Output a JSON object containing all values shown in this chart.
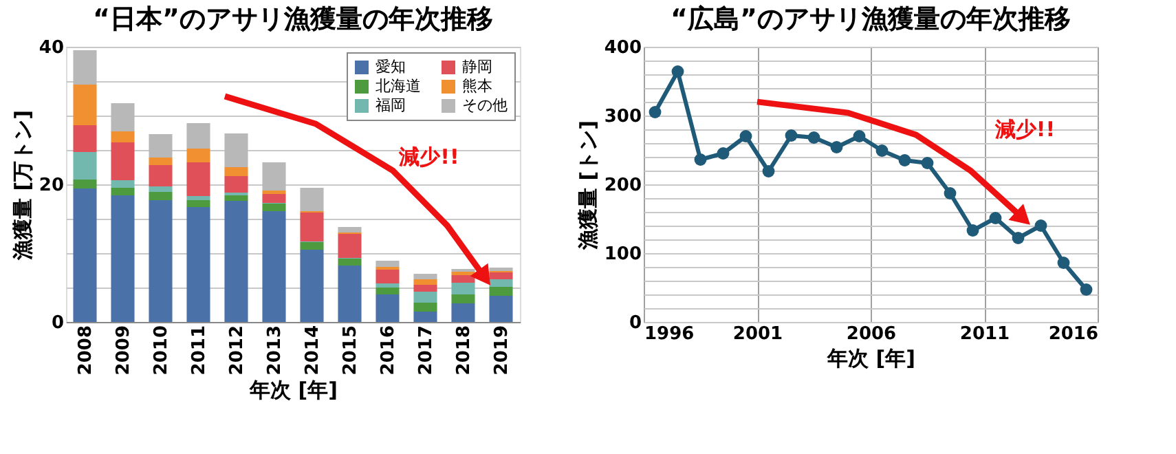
{
  "chart_data": [
    {
      "type": "bar",
      "stacked": true,
      "title": "“日本”のアサリ漁獲量の年次推移",
      "xlabel": "年次 [年]",
      "ylabel": "漁獲量 [万トン]",
      "categories": [
        "2008",
        "2009",
        "2010",
        "2011",
        "2012",
        "2013",
        "2014",
        "2015",
        "2016",
        "2017",
        "2018",
        "2019"
      ],
      "series": [
        {
          "name": "愛知",
          "color": "#4a72a8",
          "values": [
            19.4,
            18.4,
            17.7,
            16.7,
            17.6,
            16.1,
            10.5,
            8.2,
            4.0,
            1.5,
            2.7,
            3.8
          ]
        },
        {
          "name": "北海道",
          "color": "#4e9a3e",
          "values": [
            1.3,
            1.1,
            1.2,
            1.0,
            0.8,
            1.1,
            1.1,
            1.0,
            1.0,
            1.3,
            1.3,
            1.3
          ]
        },
        {
          "name": "福岡",
          "color": "#72b8ae",
          "values": [
            4.0,
            1.1,
            0.8,
            0.6,
            0.4,
            0.1,
            0.1,
            0.1,
            0.6,
            1.6,
            1.7,
            1.1
          ]
        },
        {
          "name": "静岡",
          "color": "#e05058",
          "values": [
            3.9,
            5.5,
            3.1,
            4.9,
            2.4,
            1.3,
            4.2,
            3.5,
            2.0,
            1.0,
            1.1,
            1.0
          ]
        },
        {
          "name": "熊本",
          "color": "#f09030",
          "values": [
            5.9,
            1.6,
            1.1,
            2.0,
            1.3,
            0.5,
            0.2,
            0.2,
            0.4,
            0.8,
            0.5,
            0.2
          ]
        },
        {
          "name": "その他",
          "color": "#b8b8b8",
          "values": [
            5.0,
            4.1,
            3.4,
            3.7,
            4.9,
            4.1,
            3.4,
            0.8,
            0.9,
            0.8,
            0.4,
            0.5
          ]
        }
      ],
      "ylim": [
        0,
        40
      ],
      "yticks": [
        0,
        {
          "value": 5,
          "label": null
        },
        {
          "value": 10,
          "label": null
        },
        {
          "value": 15,
          "label": null
        },
        20,
        {
          "value": 25,
          "label": null
        },
        {
          "value": 30,
          "label": null
        },
        {
          "value": 35,
          "label": null
        },
        40
      ],
      "grid": "y",
      "legend": "top right",
      "annotations": [
        "減少!!"
      ]
    },
    {
      "type": "line",
      "title": "“広島”のアサリ漁獲量の年次推移",
      "xlabel": "年次 [年]",
      "ylabel": "漁獲量 [トン]",
      "marker": "circle",
      "line_style": "solid",
      "x": [
        1996.5,
        1997.5,
        1998.5,
        1999.5,
        2000.5,
        2001.5,
        2002.5,
        2003.5,
        2004.5,
        2005.5,
        2006.5,
        2007.5,
        2008.5,
        2009.5,
        2010.5,
        2011.5,
        2012.5,
        2013.5,
        2014.5,
        2015.5
      ],
      "series": [
        {
          "color": "#1f5a78",
          "values": [
            305,
            364,
            236,
            245,
            270,
            219,
            271,
            268,
            254,
            270,
            249,
            235,
            231,
            187,
            133,
            151,
            122,
            140,
            86,
            47
          ]
        }
      ],
      "xlim": [
        1996,
        2016
      ],
      "xticks": [
        1996,
        2001,
        2006,
        2011,
        2016
      ],
      "ylim": [
        0,
        400
      ],
      "yticks": [
        0,
        {
          "value": 20,
          "label": null
        },
        {
          "value": 40,
          "label": null
        },
        {
          "value": 60,
          "label": null
        },
        {
          "value": 80,
          "label": null
        },
        100,
        {
          "value": 120,
          "label": null
        },
        {
          "value": 140,
          "label": null
        },
        {
          "value": 160,
          "label": null
        },
        {
          "value": 180,
          "label": null
        },
        200,
        {
          "value": 220,
          "label": null
        },
        {
          "value": 240,
          "label": null
        },
        {
          "value": 260,
          "label": null
        },
        {
          "value": 280,
          "label": null
        },
        300,
        {
          "value": 320,
          "label": null
        },
        {
          "value": 340,
          "label": null
        },
        {
          "value": 360,
          "label": null
        },
        {
          "value": 380,
          "label": null
        },
        400
      ],
      "grid": true,
      "legend": false,
      "annotations": [
        "減少!!"
      ]
    }
  ]
}
